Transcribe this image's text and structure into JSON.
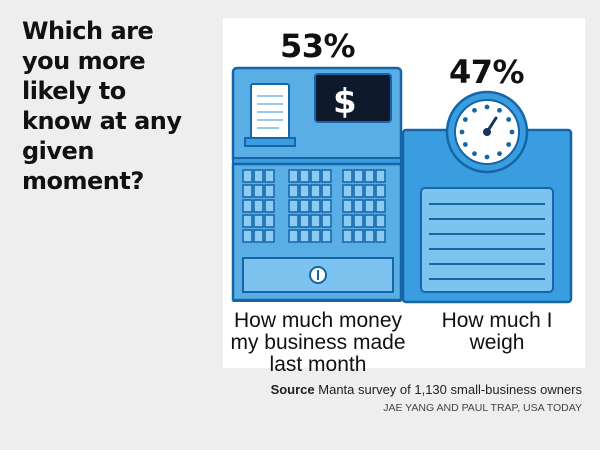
{
  "headline": "Which are you more likely to know at any given moment?",
  "chart_data": {
    "type": "pictograph",
    "categories": [
      "How much money my business made last month",
      "How much I weigh"
    ],
    "values": [
      53,
      47
    ],
    "value_labels": [
      "53%",
      "47%"
    ],
    "icons": [
      "cash-register-icon",
      "scale-icon"
    ],
    "register_display": "$"
  },
  "source": {
    "label": "Source",
    "text": "Manta survey of 1,130 small-business owners"
  },
  "credit": "JAE YANG AND PAUL TRAP, USA TODAY",
  "colors": {
    "blue": "#3a9ddf",
    "light_blue": "#7cc3ef",
    "dark_blue": "#1565a8",
    "navy": "#14365a",
    "background": "#eeeeee",
    "panel": "#ffffff"
  }
}
